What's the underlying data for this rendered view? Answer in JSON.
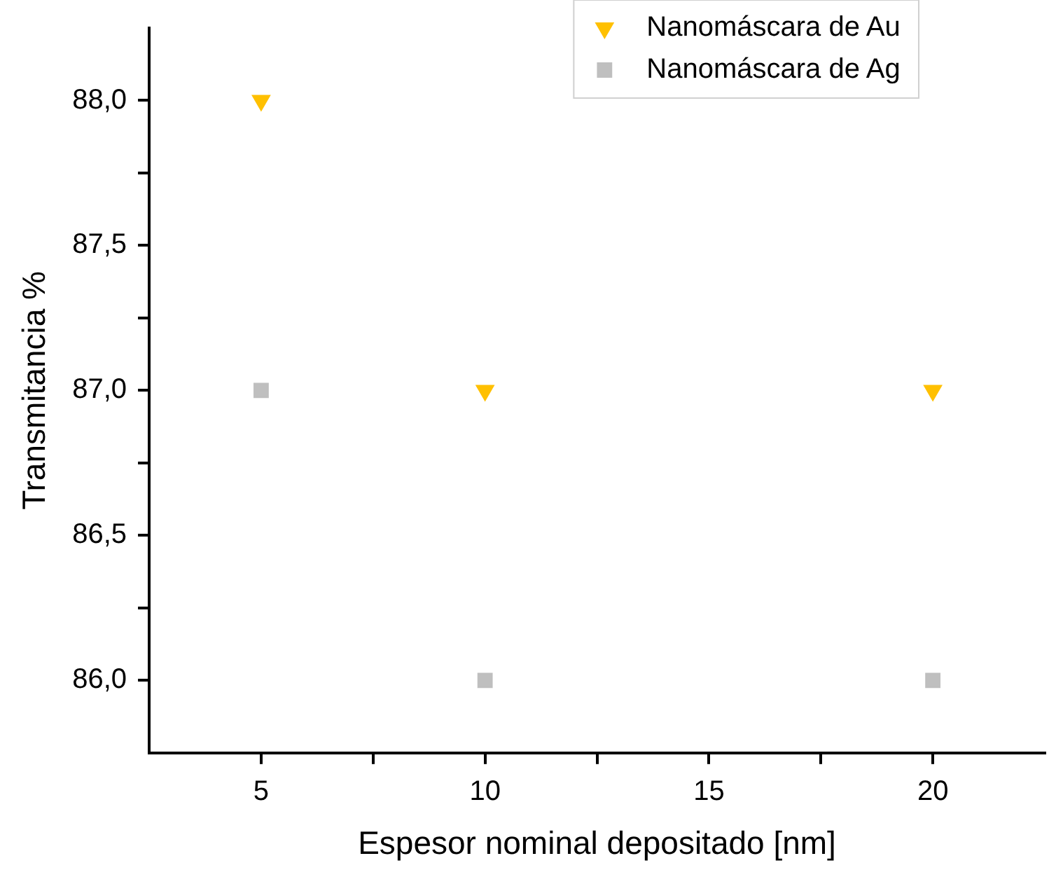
{
  "chart_data": {
    "type": "scatter",
    "xlabel": "Espesor nominal depositado [nm]",
    "ylabel": "Transmitancia %",
    "x": [
      5,
      10,
      20
    ],
    "series": [
      {
        "name": "Nanomáscara de Au",
        "color": "#ffc000",
        "marker": "triangle",
        "values": [
          88,
          87,
          87
        ]
      },
      {
        "name": "Nanomáscara de Ag",
        "color": "#bfbfbf",
        "marker": "square",
        "values": [
          87,
          86,
          86
        ]
      }
    ],
    "xlim": [
      2.5,
      22.5
    ],
    "xticks": [
      5,
      {
        "value": 7.5,
        "label": null
      },
      10,
      {
        "value": 12.5,
        "label": null
      },
      15,
      {
        "value": 17.5,
        "label": null
      },
      20
    ],
    "ylim": [
      85.75,
      88.25
    ],
    "yticks": [
      {
        "value": 86,
        "label": "86,0"
      },
      {
        "value": 86.25,
        "label": null
      },
      {
        "value": 86.5,
        "label": "86,5"
      },
      {
        "value": 86.75,
        "label": null
      },
      {
        "value": 87,
        "label": "87,0"
      },
      {
        "value": 87.25,
        "label": null
      },
      {
        "value": 87.5,
        "label": "87,5"
      },
      {
        "value": 87.75,
        "label": null
      },
      {
        "value": 88,
        "label": "88,0"
      }
    ],
    "grid": false,
    "legend": "top right"
  }
}
